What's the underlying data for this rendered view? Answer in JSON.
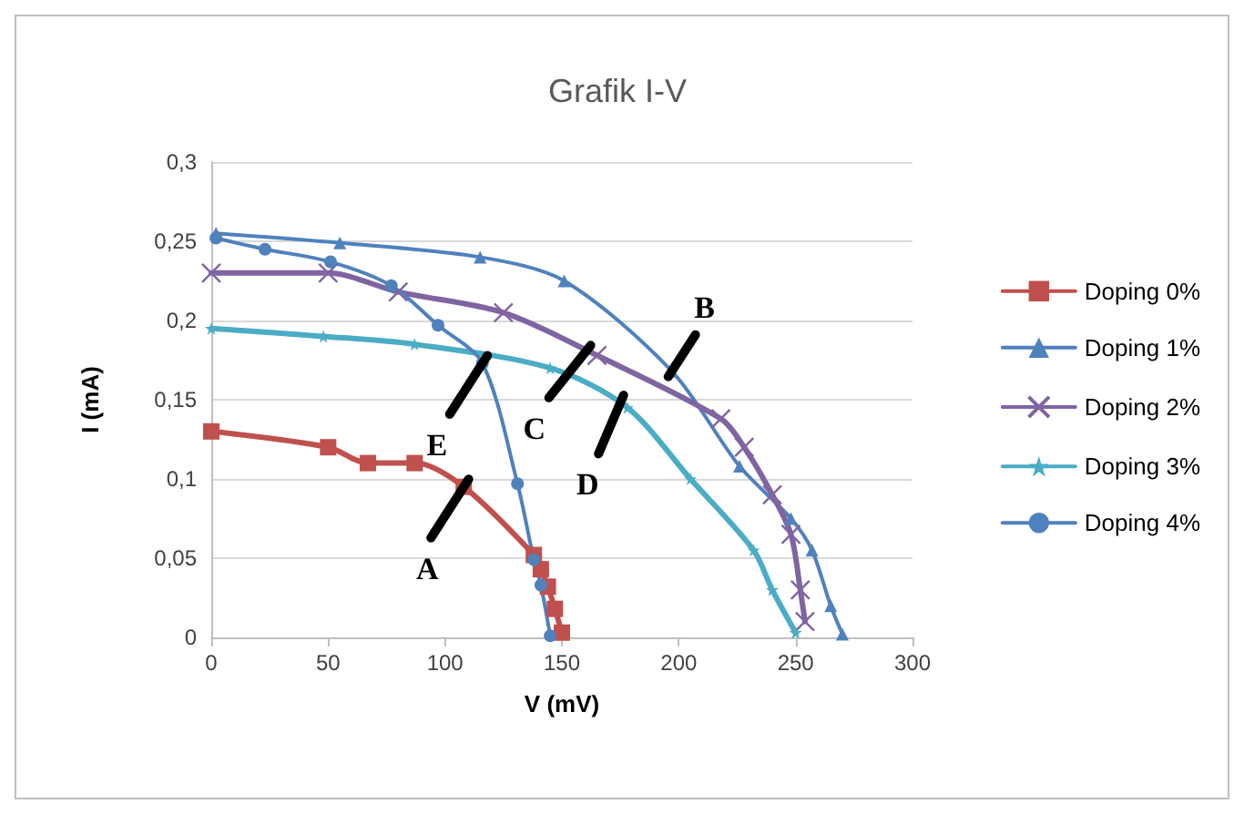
{
  "chart_data": {
    "type": "line",
    "title": "Grafik I-V",
    "xlabel": "V (mV)",
    "ylabel": "I (mA)",
    "xlim": [
      0,
      300
    ],
    "xticks": [
      0,
      50,
      100,
      150,
      200,
      250,
      300
    ],
    "ylim": [
      0,
      0.3
    ],
    "yticks": [
      {
        "value": 0,
        "label": "0"
      },
      {
        "value": 0.05,
        "label": "0,05"
      },
      {
        "value": 0.1,
        "label": "0,1"
      },
      {
        "value": 0.15,
        "label": "0,15"
      },
      {
        "value": 0.2,
        "label": "0,2"
      },
      {
        "value": 0.25,
        "label": "0,25"
      },
      {
        "value": 0.3,
        "label": "0,3"
      }
    ],
    "grid": "y",
    "legend": "right",
    "series": [
      {
        "name": "Doping 0%",
        "color": "#c0504d",
        "marker": "square",
        "x": [
          0,
          50,
          67,
          87,
          108,
          138,
          141,
          144,
          147,
          150
        ],
        "values": [
          0.13,
          0.12,
          0.11,
          0.11,
          0.095,
          0.052,
          0.043,
          0.032,
          0.018,
          0.003
        ]
      },
      {
        "name": "Doping 1%",
        "color": "#4f81bd",
        "marker": "triangle",
        "x": [
          2,
          55,
          115,
          151,
          197,
          226,
          248,
          257,
          265,
          270
        ],
        "values": [
          0.255,
          0.249,
          0.24,
          0.225,
          0.168,
          0.108,
          0.075,
          0.055,
          0.02,
          0.002
        ]
      },
      {
        "name": "Doping 2%",
        "color": "#8064a2",
        "marker": "cross",
        "x": [
          0,
          50,
          80,
          125,
          165,
          218,
          228,
          240,
          248,
          252,
          254
        ],
        "values": [
          0.23,
          0.23,
          0.218,
          0.205,
          0.178,
          0.138,
          0.12,
          0.09,
          0.065,
          0.03,
          0.01
        ]
      },
      {
        "name": "Doping 3%",
        "color": "#4bacc6",
        "marker": "star",
        "x": [
          0,
          48,
          87,
          145,
          178,
          205,
          232,
          240,
          250
        ],
        "values": [
          0.195,
          0.19,
          0.185,
          0.17,
          0.145,
          0.1,
          0.055,
          0.03,
          0.003
        ]
      },
      {
        "name": "Doping 4%",
        "color": "#4f81bd",
        "marker": "circle",
        "x": [
          2,
          23,
          51,
          77,
          97,
          116,
          131,
          138,
          141,
          145
        ],
        "values": [
          0.252,
          0.245,
          0.237,
          0.222,
          0.197,
          0.173,
          0.097,
          0.049,
          0.033,
          0.001
        ]
      }
    ],
    "annotations": [
      {
        "text": "A",
        "x": 108,
        "y": 0.095
      },
      {
        "text": "B",
        "x": 197,
        "y": 0.168
      },
      {
        "text": "C",
        "x": 160,
        "y": 0.18
      },
      {
        "text": "D",
        "x": 175,
        "y": 0.148
      },
      {
        "text": "E",
        "x": 116,
        "y": 0.173
      }
    ]
  }
}
